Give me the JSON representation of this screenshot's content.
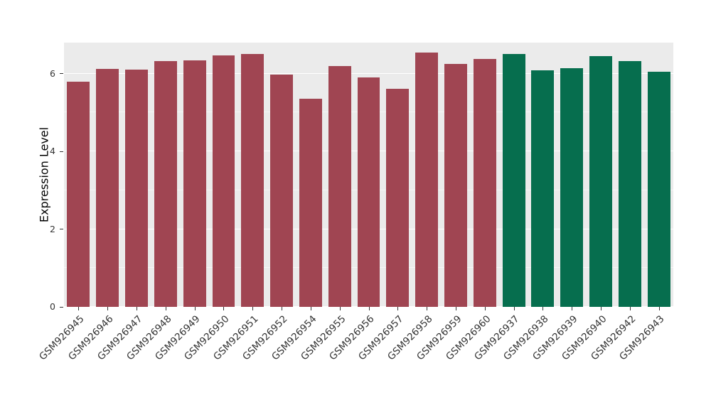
{
  "chart_data": {
    "type": "bar",
    "title": "",
    "xlabel": "",
    "ylabel": "Expression Level",
    "ylim": [
      0,
      6.8
    ],
    "yticks": [
      0,
      2,
      4,
      6
    ],
    "yticks_minor": [
      1,
      3,
      5
    ],
    "grid": "on",
    "legend": "none",
    "panel_background": "#EBEBEB",
    "gridline_color": "#FFFFFF",
    "categories": [
      "GSM926945",
      "GSM926946",
      "GSM926947",
      "GSM926948",
      "GSM926949",
      "GSM926950",
      "GSM926951",
      "GSM926952",
      "GSM926954",
      "GSM926955",
      "GSM926956",
      "GSM926957",
      "GSM926958",
      "GSM926959",
      "GSM926960",
      "GSM926937",
      "GSM926938",
      "GSM926939",
      "GSM926940",
      "GSM926942",
      "GSM926943"
    ],
    "values": [
      5.8,
      6.13,
      6.1,
      6.33,
      6.35,
      6.47,
      6.5,
      5.98,
      5.35,
      6.2,
      5.9,
      5.62,
      6.55,
      6.25,
      6.38,
      6.5,
      6.08,
      6.15,
      6.45,
      6.33,
      6.05
    ],
    "group_split": 15,
    "colors": {
      "group1": "#A04552",
      "group2": "#066E4E"
    }
  }
}
